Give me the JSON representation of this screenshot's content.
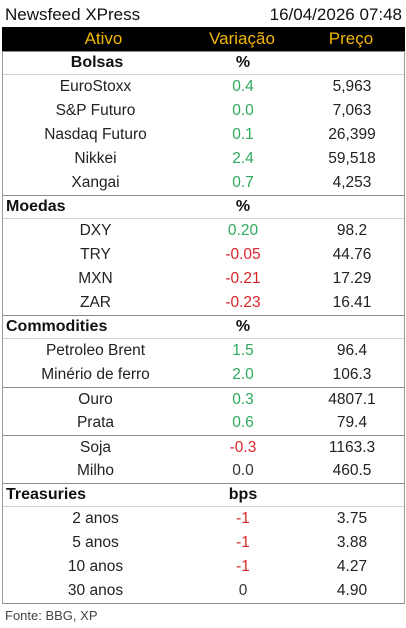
{
  "title": "Newsfeed XPress",
  "datetime": "16/04/2026 07:48",
  "columns": {
    "asset": "Ativo",
    "change": "Variação",
    "price": "Preço"
  },
  "sections": [
    {
      "name": "Bolsas",
      "unit": "%",
      "centered": true,
      "rows": [
        {
          "name": "EuroStoxx",
          "change": "0.4",
          "sign": "pos",
          "price": "5,963"
        },
        {
          "name": "S&P Futuro",
          "change": "0.0",
          "sign": "pos",
          "price": "7,063"
        },
        {
          "name": "Nasdaq Futuro",
          "change": "0.1",
          "sign": "pos",
          "price": "26,399"
        },
        {
          "name": "Nikkei",
          "change": "2.4",
          "sign": "pos",
          "price": "59,518"
        },
        {
          "name": "Xangai",
          "change": "0.7",
          "sign": "pos",
          "price": "4,253"
        }
      ]
    },
    {
      "name": "Moedas",
      "unit": "%",
      "centered": false,
      "rows": [
        {
          "name": "DXY",
          "change": "0.20",
          "sign": "pos",
          "price": "98.2"
        },
        {
          "name": "TRY",
          "change": "-0.05",
          "sign": "neg",
          "price": "44.76"
        },
        {
          "name": "MXN",
          "change": "-0.21",
          "sign": "neg",
          "price": "17.29"
        },
        {
          "name": "ZAR",
          "change": "-0.23",
          "sign": "neg",
          "price": "16.41"
        }
      ]
    },
    {
      "name": "Commodities",
      "unit": "%",
      "centered": false,
      "rows": [
        {
          "name": "Petroleo Brent",
          "change": "1.5",
          "sign": "pos",
          "price": "96.4"
        },
        {
          "name": "Minério de ferro",
          "change": "2.0",
          "sign": "pos",
          "price": "106.3"
        },
        {
          "name": "Ouro",
          "change": "0.3",
          "sign": "pos",
          "price": "4807.1",
          "group_top": true
        },
        {
          "name": "Prata",
          "change": "0.6",
          "sign": "pos",
          "price": "79.4"
        },
        {
          "name": "Soja",
          "change": "-0.3",
          "sign": "neg",
          "price": "1163.3",
          "group_top": true
        },
        {
          "name": "Milho",
          "change": "0.0",
          "sign": "zero",
          "price": "460.5"
        }
      ]
    },
    {
      "name": "Treasuries",
      "unit": "bps",
      "centered": false,
      "rows": [
        {
          "name": "2 anos",
          "change": "-1",
          "sign": "neg",
          "price": "3.75"
        },
        {
          "name": "5 anos",
          "change": "-1",
          "sign": "neg",
          "price": "3.88"
        },
        {
          "name": "10 anos",
          "change": "-1",
          "sign": "neg",
          "price": "4.27"
        },
        {
          "name": "30 anos",
          "change": "0",
          "sign": "zero",
          "price": "4.90"
        }
      ]
    }
  ],
  "footer": "Fonte: BBG, XP"
}
